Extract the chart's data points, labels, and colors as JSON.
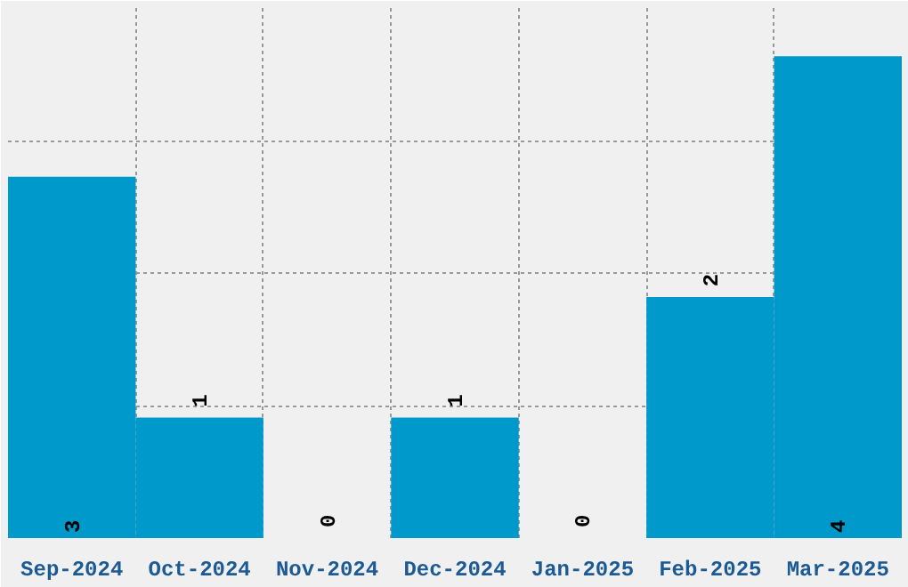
{
  "chart_data": {
    "type": "bar",
    "categories": [
      "Sep-2024",
      "Oct-2024",
      "Nov-2024",
      "Dec-2024",
      "Jan-2025",
      "Feb-2025",
      "Mar-2025"
    ],
    "values": [
      3,
      1,
      0,
      1,
      0,
      2,
      4
    ],
    "color": "#0099cc",
    "ylim": [
      0,
      4.4
    ],
    "tick_labels": "x",
    "grid": true,
    "data_labels": true
  }
}
